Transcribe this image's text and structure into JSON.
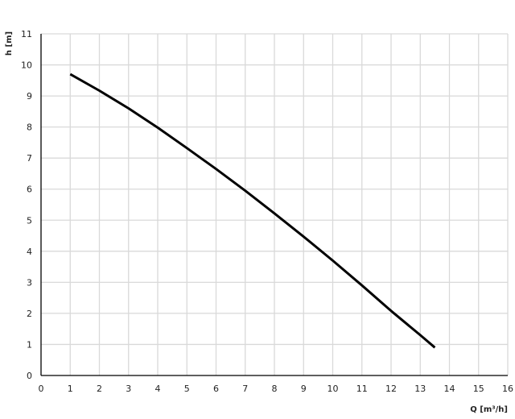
{
  "chart_data": {
    "type": "line",
    "title": "",
    "xlabel": "Q [m³/h]",
    "ylabel": "h [m]",
    "xlim": [
      0,
      16
    ],
    "ylim": [
      0,
      11
    ],
    "xticks": [
      0,
      1,
      2,
      3,
      4,
      5,
      6,
      7,
      8,
      9,
      10,
      11,
      12,
      13,
      14,
      15,
      16
    ],
    "yticks": [
      0,
      1,
      2,
      3,
      4,
      5,
      6,
      7,
      8,
      9,
      10,
      11
    ],
    "grid": true,
    "colors": {
      "line": "#000000",
      "grid": "#d9d9d9",
      "axis": "#000000"
    },
    "series": [
      {
        "x": [
          1,
          2,
          3,
          4,
          5,
          6,
          7,
          8,
          9,
          10,
          11,
          12,
          13,
          13.5
        ],
        "y": [
          9.7,
          9.17,
          8.6,
          7.98,
          7.32,
          6.65,
          5.95,
          5.22,
          4.47,
          3.7,
          2.9,
          2.08,
          1.3,
          0.9
        ]
      }
    ]
  }
}
